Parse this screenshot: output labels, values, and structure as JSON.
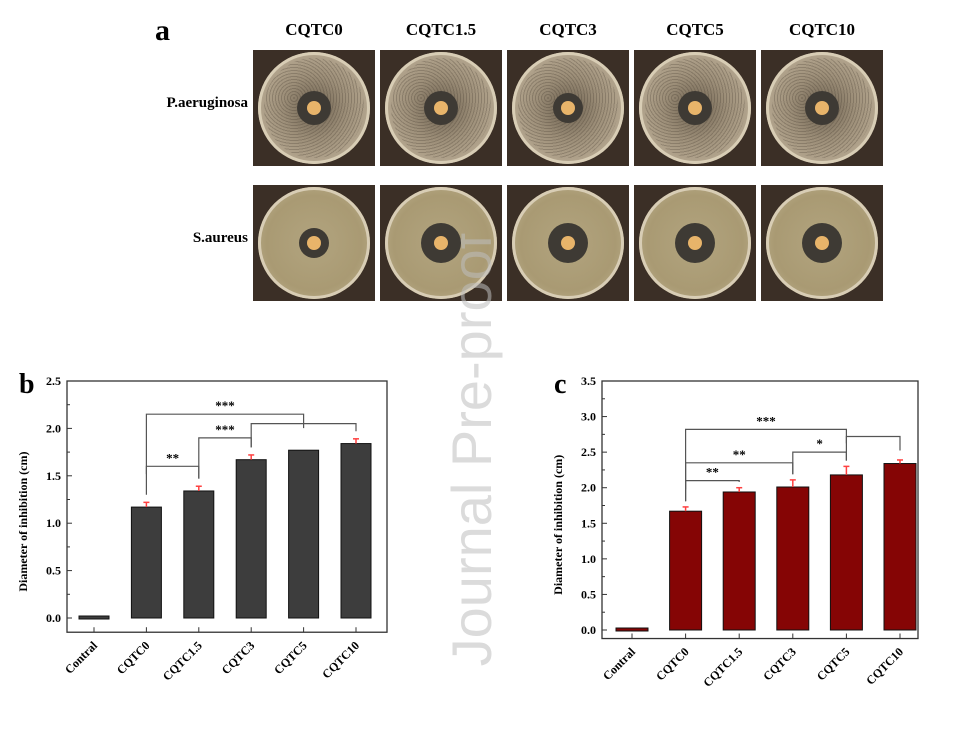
{
  "panel_a": {
    "label": "a",
    "columns": [
      "CQTC0",
      "CQTC1.5",
      "CQTC3",
      "CQTC5",
      "CQTC10"
    ],
    "rows": [
      "P.aeruginosa",
      "S.aureus"
    ]
  },
  "watermark": "Journal Pre-proof",
  "chart_data": [
    {
      "panel_label": "b",
      "type": "bar",
      "categories": [
        "Contral",
        "CQTC0",
        "CQTC1.5",
        "CQTC3",
        "CQTC5",
        "CQTC10"
      ],
      "values": [
        0,
        1.17,
        1.34,
        1.67,
        1.77,
        1.84
      ],
      "errors": [
        0,
        0.05,
        0.05,
        0.05,
        0,
        0.05
      ],
      "ylabel": "Diameter of inhibition (cm)",
      "xlabel": "",
      "ylim": [
        -0.15,
        2.5
      ],
      "yticks": [
        "0.0",
        "0.5",
        "1.0",
        "1.5",
        "2.0",
        "2.5"
      ],
      "bar_color": "#3d3d3d",
      "error_color": "#ff4040",
      "annotations": [
        {
          "from": "CQTC0",
          "to": "CQTC1.5",
          "y": 1.6,
          "label": "**"
        },
        {
          "from": "CQTC1.5",
          "to": "CQTC3",
          "y": 1.9,
          "label": "***"
        },
        {
          "from": "CQTC3",
          "to": "CQTC10",
          "y": 2.05,
          "label": ""
        },
        {
          "from": "CQTC0",
          "to": "CQTC5",
          "y": 2.15,
          "label": "***"
        }
      ]
    },
    {
      "panel_label": "c",
      "type": "bar",
      "categories": [
        "Contral",
        "CQTC0",
        "CQTC1.5",
        "CQTC3",
        "CQTC5",
        "CQTC10"
      ],
      "values": [
        0,
        1.67,
        1.94,
        2.01,
        2.18,
        2.34
      ],
      "errors": [
        0,
        0.06,
        0.06,
        0.1,
        0.12,
        0.05
      ],
      "ylabel": "Diameter of inhibition (cm)",
      "xlabel": "",
      "ylim": [
        -0.12,
        3.5
      ],
      "yticks": [
        "0.0",
        "0.5",
        "1.0",
        "1.5",
        "2.0",
        "2.5",
        "3.0",
        "3.5"
      ],
      "bar_color": "#850505",
      "error_color": "#ff4040",
      "annotations": [
        {
          "from": "CQTC0",
          "to": "CQTC1.5",
          "y": 2.1,
          "label": "**"
        },
        {
          "from": "CQTC0",
          "to": "CQTC3",
          "y": 2.35,
          "label": "**"
        },
        {
          "from": "CQTC3",
          "to": "CQTC5",
          "y": 2.5,
          "label": "*"
        },
        {
          "from": "CQTC5",
          "to": "CQTC10",
          "y": 2.72,
          "label": ""
        },
        {
          "from": "CQTC0",
          "to": "CQTC5",
          "y": 2.82,
          "label": "***"
        }
      ]
    }
  ]
}
